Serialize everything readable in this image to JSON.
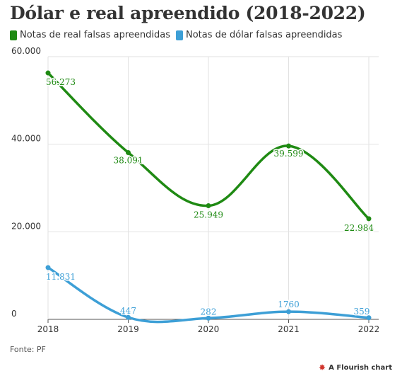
{
  "chart_data": {
    "type": "line",
    "title": "Dólar e real apreendido (2018-2022)",
    "x": [
      "2018",
      "2019",
      "2020",
      "2021",
      "2022"
    ],
    "ylim": [
      0,
      60000
    ],
    "yticks": [
      0,
      20000,
      40000,
      60000
    ],
    "ytick_labels": [
      "0",
      "20.000",
      "40.000",
      "60.000"
    ],
    "grid": true,
    "legend_position": "top-left",
    "series": [
      {
        "name": "Notas de real falsas apreendidas",
        "color": "#1f8a13",
        "values": [
          56273,
          38091,
          25949,
          39599,
          22984
        ],
        "labels": [
          "56.273",
          "38.091",
          "25.949",
          "39.599",
          "22.984"
        ]
      },
      {
        "name": "Notas de dólar falsas apreendidas",
        "color": "#3d9fd6",
        "values": [
          11831,
          447,
          282,
          1760,
          359
        ],
        "labels": [
          "11.831",
          "447",
          "282",
          "1760",
          "359"
        ]
      }
    ]
  },
  "source": "Fonte: PF",
  "credit": "A Flourish chart",
  "credit_icon": "flourish-logo-icon"
}
